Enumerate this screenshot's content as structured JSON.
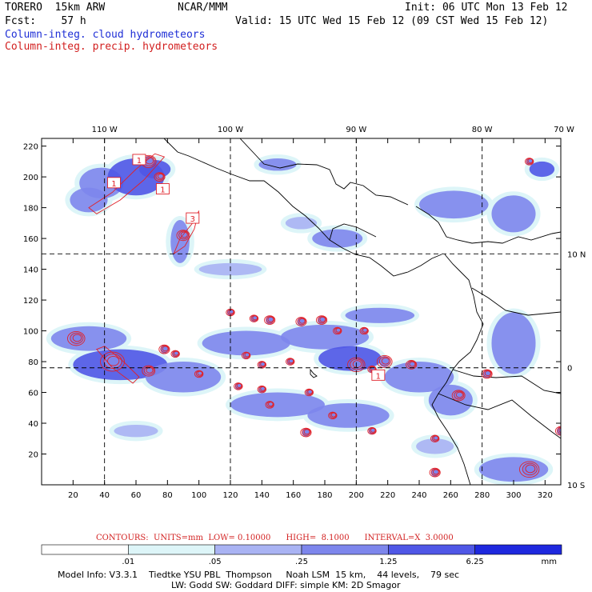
{
  "header": {
    "model": "TORERO  15km ARW",
    "org": "NCAR/MMM",
    "init": "Init: 06 UTC Mon 13 Feb 12",
    "fcst": "Fcst:    57 h",
    "valid": "Valid: 15 UTC Wed 15 Feb 12 (09 CST Wed 15 Feb 12)",
    "legend_cloud": "Column-integ. cloud hydrometeors",
    "legend_precip": "Column-integ. precip. hydrometeors"
  },
  "chart_data": {
    "type": "heatmap",
    "xlim": [
      0,
      330
    ],
    "ylim": [
      0,
      225
    ],
    "x_ticks": [
      20,
      40,
      60,
      80,
      100,
      120,
      140,
      160,
      180,
      200,
      220,
      240,
      260,
      280,
      300,
      320
    ],
    "y_ticks": [
      20,
      40,
      60,
      80,
      100,
      120,
      140,
      160,
      180,
      200,
      220
    ],
    "x_tick_labels": [
      "20",
      "40",
      "60",
      "80",
      "100",
      "120",
      "140",
      "160",
      "180",
      "200",
      "220",
      "240",
      "260",
      "280",
      "300",
      "320"
    ],
    "y_tick_labels": [
      "20",
      "40",
      "60",
      "80",
      "100",
      "120",
      "140",
      "160",
      "180",
      "200",
      "220"
    ],
    "lon_labels": [
      {
        "text": "110 W",
        "x": 40
      },
      {
        "text": "100 W",
        "x": 120
      },
      {
        "text": "90 W",
        "x": 200
      },
      {
        "text": "80 W",
        "x": 280
      },
      {
        "text": "70 W",
        "x": 350
      }
    ],
    "lat_labels": [
      {
        "text": "10 N",
        "y": 150
      },
      {
        "text": "0",
        "y": 76
      },
      {
        "text": "10 S",
        "y": 0
      }
    ],
    "grid_lines_x": [
      40,
      120,
      200,
      280
    ],
    "grid_lines_y": [
      150,
      76
    ],
    "shading_levels": [
      ".01",
      ".05",
      ".25",
      "1.25",
      "6.25"
    ],
    "shading_colors": [
      "#ffffff",
      "#ddf5f8",
      "#a9b3f3",
      "#7d86ec",
      "#4f57e6",
      "#1e28de"
    ],
    "shading_unit": "mm",
    "cloud_areas": [
      {
        "x": 38,
        "y": 196,
        "rx": 14,
        "ry": 10,
        "level": 2
      },
      {
        "x": 60,
        "y": 200,
        "rx": 18,
        "ry": 12,
        "level": 3
      },
      {
        "x": 72,
        "y": 205,
        "rx": 10,
        "ry": 6,
        "level": 3
      },
      {
        "x": 30,
        "y": 185,
        "rx": 12,
        "ry": 8,
        "level": 2
      },
      {
        "x": 88,
        "y": 158,
        "rx": 6,
        "ry": 14,
        "level": 2
      },
      {
        "x": 150,
        "y": 208,
        "rx": 12,
        "ry": 4,
        "level": 2
      },
      {
        "x": 262,
        "y": 182,
        "rx": 22,
        "ry": 9,
        "level": 2
      },
      {
        "x": 300,
        "y": 176,
        "rx": 14,
        "ry": 12,
        "level": 2
      },
      {
        "x": 318,
        "y": 205,
        "rx": 8,
        "ry": 5,
        "level": 3
      },
      {
        "x": 188,
        "y": 160,
        "rx": 16,
        "ry": 6,
        "level": 2
      },
      {
        "x": 165,
        "y": 170,
        "rx": 10,
        "ry": 4,
        "level": 1
      },
      {
        "x": 30,
        "y": 95,
        "rx": 24,
        "ry": 8,
        "level": 2
      },
      {
        "x": 50,
        "y": 78,
        "rx": 30,
        "ry": 10,
        "level": 3
      },
      {
        "x": 90,
        "y": 70,
        "rx": 24,
        "ry": 10,
        "level": 2
      },
      {
        "x": 130,
        "y": 92,
        "rx": 28,
        "ry": 8,
        "level": 2
      },
      {
        "x": 180,
        "y": 96,
        "rx": 28,
        "ry": 8,
        "level": 2
      },
      {
        "x": 215,
        "y": 110,
        "rx": 22,
        "ry": 5,
        "level": 2
      },
      {
        "x": 196,
        "y": 82,
        "rx": 20,
        "ry": 8,
        "level": 3
      },
      {
        "x": 240,
        "y": 70,
        "rx": 22,
        "ry": 10,
        "level": 2
      },
      {
        "x": 150,
        "y": 52,
        "rx": 30,
        "ry": 8,
        "level": 2
      },
      {
        "x": 195,
        "y": 45,
        "rx": 26,
        "ry": 8,
        "level": 2
      },
      {
        "x": 260,
        "y": 55,
        "rx": 14,
        "ry": 10,
        "level": 2
      },
      {
        "x": 300,
        "y": 92,
        "rx": 14,
        "ry": 20,
        "level": 2
      },
      {
        "x": 300,
        "y": 10,
        "rx": 22,
        "ry": 8,
        "level": 2
      },
      {
        "x": 120,
        "y": 140,
        "rx": 20,
        "ry": 4,
        "level": 1
      },
      {
        "x": 60,
        "y": 35,
        "rx": 14,
        "ry": 4,
        "level": 1
      },
      {
        "x": 250,
        "y": 25,
        "rx": 12,
        "ry": 5,
        "level": 1
      }
    ],
    "precip_cells": [
      {
        "x": 22,
        "y": 95,
        "r": 7
      },
      {
        "x": 45,
        "y": 80,
        "r": 10
      },
      {
        "x": 68,
        "y": 74,
        "r": 5
      },
      {
        "x": 78,
        "y": 88,
        "r": 4
      },
      {
        "x": 85,
        "y": 85,
        "r": 3
      },
      {
        "x": 120,
        "y": 112,
        "r": 3
      },
      {
        "x": 135,
        "y": 108,
        "r": 3
      },
      {
        "x": 145,
        "y": 107,
        "r": 4
      },
      {
        "x": 165,
        "y": 106,
        "r": 4
      },
      {
        "x": 178,
        "y": 107,
        "r": 4
      },
      {
        "x": 188,
        "y": 100,
        "r": 3
      },
      {
        "x": 205,
        "y": 100,
        "r": 3
      },
      {
        "x": 130,
        "y": 84,
        "r": 3
      },
      {
        "x": 140,
        "y": 78,
        "r": 3
      },
      {
        "x": 158,
        "y": 80,
        "r": 3
      },
      {
        "x": 200,
        "y": 78,
        "r": 7
      },
      {
        "x": 218,
        "y": 80,
        "r": 6
      },
      {
        "x": 235,
        "y": 78,
        "r": 4
      },
      {
        "x": 100,
        "y": 72,
        "r": 3
      },
      {
        "x": 125,
        "y": 64,
        "r": 3
      },
      {
        "x": 140,
        "y": 62,
        "r": 3
      },
      {
        "x": 145,
        "y": 52,
        "r": 3
      },
      {
        "x": 170,
        "y": 60,
        "r": 3
      },
      {
        "x": 185,
        "y": 45,
        "r": 3
      },
      {
        "x": 168,
        "y": 34,
        "r": 4
      },
      {
        "x": 210,
        "y": 35,
        "r": 3
      },
      {
        "x": 265,
        "y": 58,
        "r": 5
      },
      {
        "x": 283,
        "y": 72,
        "r": 4
      },
      {
        "x": 250,
        "y": 30,
        "r": 3
      },
      {
        "x": 250,
        "y": 8,
        "r": 4
      },
      {
        "x": 310,
        "y": 10,
        "r": 8
      },
      {
        "x": 330,
        "y": 35,
        "r": 4
      },
      {
        "x": 68,
        "y": 210,
        "r": 6
      },
      {
        "x": 75,
        "y": 200,
        "r": 4
      },
      {
        "x": 310,
        "y": 210,
        "r": 3
      },
      {
        "x": 90,
        "y": 162,
        "r": 5
      },
      {
        "x": 210,
        "y": 75,
        "r": 3
      }
    ],
    "precip_bands": [
      {
        "points": [
          [
            30,
            180
          ],
          [
            45,
            190
          ],
          [
            60,
            205
          ],
          [
            72,
            215
          ],
          [
            78,
            213
          ],
          [
            65,
            198
          ],
          [
            50,
            185
          ],
          [
            35,
            176
          ]
        ]
      },
      {
        "points": [
          [
            84,
            150
          ],
          [
            88,
            160
          ],
          [
            96,
            170
          ],
          [
            100,
            178
          ],
          [
            97,
            166
          ],
          [
            91,
            155
          ]
        ]
      },
      {
        "points": [
          [
            35,
            88
          ],
          [
            45,
            76
          ],
          [
            58,
            66
          ],
          [
            62,
            70
          ],
          [
            52,
            80
          ],
          [
            40,
            90
          ]
        ]
      }
    ],
    "max_labels": [
      {
        "text": "1",
        "x": 62,
        "y": 211
      },
      {
        "text": "1",
        "x": 46,
        "y": 196
      },
      {
        "text": "1",
        "x": 77,
        "y": 192
      },
      {
        "text": "3",
        "x": 96,
        "y": 173
      },
      {
        "text": "1",
        "x": 214,
        "y": 71
      }
    ],
    "contours_units": "mm",
    "contours_low": "0.10000",
    "contours_high": "8.1000",
    "contours_interval": "3.0000"
  },
  "contours_text": "CONTOURS:  UNITS=mm  LOW= 0.10000      HIGH=  8.1000      INTERVAL=X  3.0000",
  "footer": {
    "line1": "Model Info: V3.3.1    Tiedtke YSU PBL  Thompson     Noah LSM  15 km,    44 levels,    79 sec",
    "line2": "LW: Godd SW: Goddard DIFF: simple KM: 2D Smagor"
  }
}
